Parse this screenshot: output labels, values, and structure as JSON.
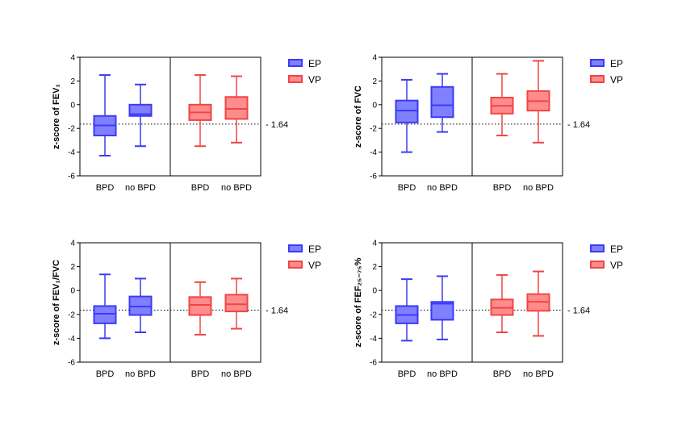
{
  "reference": {
    "value": -1.64,
    "label": "- 1.64"
  },
  "colors": {
    "EP": {
      "stroke": "#3b3bf5",
      "fill": "#8080ff"
    },
    "VP": {
      "stroke": "#f04545",
      "fill": "#ff8c8c"
    }
  },
  "chart_data": [
    {
      "type": "box",
      "ylabel": "z-score of FEV₁",
      "ylim": [
        -6,
        4
      ],
      "yticks": [
        "4",
        "2",
        "0",
        "-2",
        "-4",
        "-6"
      ],
      "categories": [
        "BPD",
        "no BPD",
        "BPD",
        "no BPD"
      ],
      "legend": [
        "EP",
        "VP"
      ],
      "boxes": [
        {
          "group": "EP",
          "category": "BPD",
          "min": -4.3,
          "q1": -2.6,
          "median": -1.75,
          "q3": -0.95,
          "max": 2.5
        },
        {
          "group": "EP",
          "category": "no BPD",
          "min": -3.5,
          "q1": -0.95,
          "median": -0.8,
          "q3": 0.0,
          "max": 1.7
        },
        {
          "group": "VP",
          "category": "BPD",
          "min": -3.5,
          "q1": -1.3,
          "median": -0.65,
          "q3": 0.0,
          "max": 2.5
        },
        {
          "group": "VP",
          "category": "no BPD",
          "min": -3.2,
          "q1": -1.2,
          "median": -0.35,
          "q3": 0.65,
          "max": 2.4
        }
      ]
    },
    {
      "type": "box",
      "ylabel": "z-score of  FVC",
      "ylim": [
        -6,
        4
      ],
      "yticks": [
        "4",
        "2",
        "0",
        "-2",
        "-4",
        "-6"
      ],
      "categories": [
        "BPD",
        "no BPD",
        "BPD",
        "no BPD"
      ],
      "legend": [
        "EP",
        "VP"
      ],
      "boxes": [
        {
          "group": "EP",
          "category": "BPD",
          "min": -4.0,
          "q1": -1.5,
          "median": -0.5,
          "q3": 0.35,
          "max": 2.1
        },
        {
          "group": "EP",
          "category": "no BPD",
          "min": -2.3,
          "q1": -1.05,
          "median": -0.05,
          "q3": 1.5,
          "max": 2.6
        },
        {
          "group": "VP",
          "category": "BPD",
          "min": -2.6,
          "q1": -0.75,
          "median": -0.1,
          "q3": 0.6,
          "max": 2.6
        },
        {
          "group": "VP",
          "category": "no BPD",
          "min": -3.2,
          "q1": -0.5,
          "median": 0.3,
          "q3": 1.15,
          "max": 3.7
        }
      ]
    },
    {
      "type": "box",
      "ylabel": "z-score of FEV₁/FVC",
      "ylim": [
        -6,
        4
      ],
      "yticks": [
        "4",
        "2",
        "0",
        "-2",
        "-4",
        "-6"
      ],
      "categories": [
        "BPD",
        "no BPD",
        "BPD",
        "no BPD"
      ],
      "legend": [
        "EP",
        "VP"
      ],
      "boxes": [
        {
          "group": "EP",
          "category": "BPD",
          "min": -4.0,
          "q1": -2.75,
          "median": -1.95,
          "q3": -1.3,
          "max": 1.35
        },
        {
          "group": "EP",
          "category": "no BPD",
          "min": -3.5,
          "q1": -2.05,
          "median": -1.35,
          "q3": -0.5,
          "max": 1.0
        },
        {
          "group": "VP",
          "category": "BPD",
          "min": -3.7,
          "q1": -2.05,
          "median": -1.2,
          "q3": -0.55,
          "max": 0.7
        },
        {
          "group": "VP",
          "category": "no BPD",
          "min": -3.2,
          "q1": -1.75,
          "median": -1.15,
          "q3": -0.35,
          "max": 1.0
        }
      ]
    },
    {
      "type": "box",
      "ylabel": "z-score of FEF₂₅₋₇₅%",
      "ylim": [
        -6,
        4
      ],
      "yticks": [
        "4",
        "2",
        "0",
        "-2",
        "-4",
        "-6"
      ],
      "categories": [
        "BPD",
        "no BPD",
        "BPD",
        "no BPD"
      ],
      "legend": [
        "EP",
        "VP"
      ],
      "boxes": [
        {
          "group": "EP",
          "category": "BPD",
          "min": -4.2,
          "q1": -2.75,
          "median": -2.05,
          "q3": -1.3,
          "max": 0.95
        },
        {
          "group": "EP",
          "category": "no BPD",
          "min": -4.1,
          "q1": -2.45,
          "median": -1.1,
          "q3": -0.95,
          "max": 1.2
        },
        {
          "group": "VP",
          "category": "BPD",
          "min": -3.5,
          "q1": -2.05,
          "median": -1.45,
          "q3": -0.75,
          "max": 1.3
        },
        {
          "group": "VP",
          "category": "no BPD",
          "min": -3.8,
          "q1": -1.7,
          "median": -0.95,
          "q3": -0.3,
          "max": 1.6
        }
      ]
    }
  ]
}
